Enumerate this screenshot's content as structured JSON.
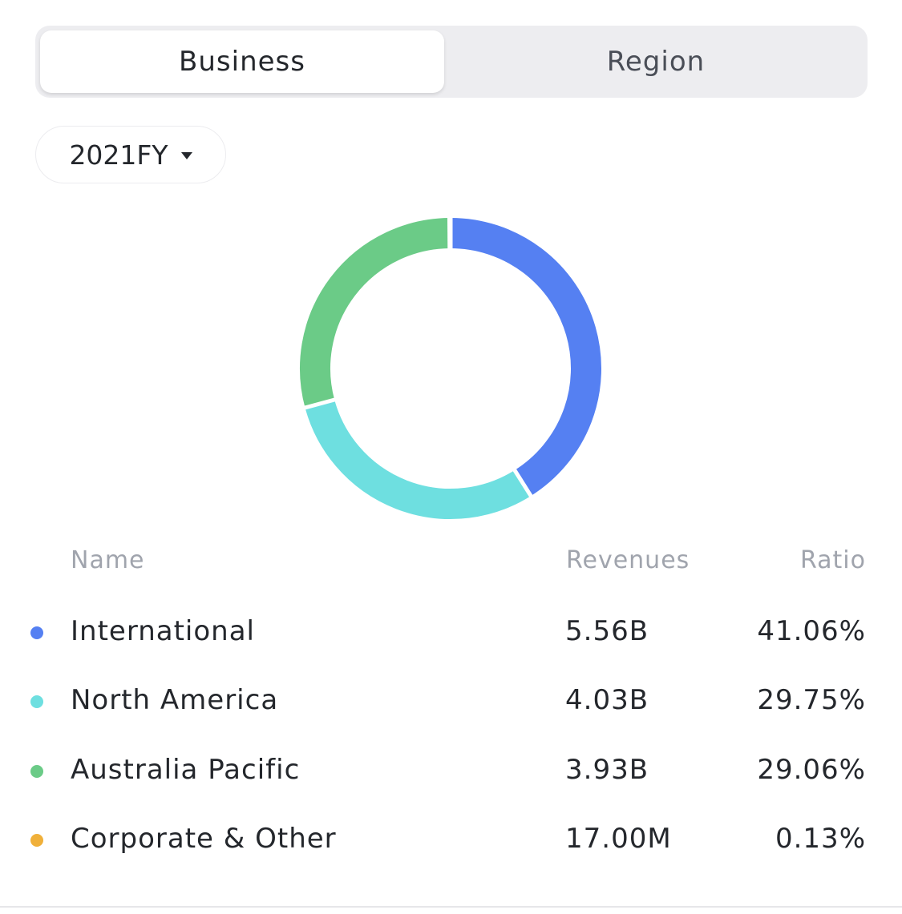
{
  "tabs": {
    "business": "Business",
    "region": "Region"
  },
  "period": {
    "label": "2021FY"
  },
  "table": {
    "headers": {
      "name": "Name",
      "revenues": "Revenues",
      "ratio": "Ratio"
    },
    "rows": [
      {
        "name": "International",
        "revenue": "5.56B",
        "ratio": "41.06%",
        "color": "#5580f2"
      },
      {
        "name": "North America",
        "revenue": "4.03B",
        "ratio": "29.75%",
        "color": "#6edfe0"
      },
      {
        "name": "Australia Pacific",
        "revenue": "3.93B",
        "ratio": "29.06%",
        "color": "#6bcb87"
      },
      {
        "name": "Corporate & Other",
        "revenue": "17.00M",
        "ratio": "0.13%",
        "color": "#f0b03a"
      }
    ]
  },
  "chart_data": {
    "type": "pie",
    "categories": [
      "International",
      "North America",
      "Australia Pacific",
      "Corporate & Other"
    ],
    "values": [
      41.06,
      29.75,
      29.06,
      0.13
    ],
    "colors": [
      "#5580f2",
      "#6edfe0",
      "#6bcb87",
      "#f0b03a"
    ]
  }
}
